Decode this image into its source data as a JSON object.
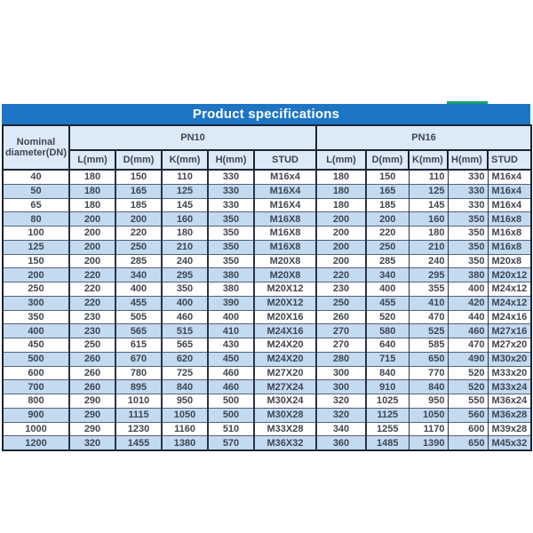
{
  "title_bar": {
    "label": "Product specifications",
    "bg_color": "#1e75c5",
    "accent_color": "#18a06e"
  },
  "table": {
    "nominal_header_line1": "Nominal",
    "nominal_header_line2": "diameter(DN)",
    "groups": [
      {
        "label": "PN10"
      },
      {
        "label": "PN16"
      }
    ],
    "sub_headers": [
      "L(mm)",
      "D(mm)",
      "K(mm)",
      "H(mm)",
      "STUD"
    ],
    "rows": [
      {
        "dn": "40",
        "pn10": [
          "180",
          "150",
          "110",
          "330",
          "M16x4"
        ],
        "pn16": [
          "180",
          "150",
          "110",
          "330",
          "M16x4"
        ]
      },
      {
        "dn": "50",
        "pn10": [
          "180",
          "165",
          "125",
          "330",
          "M16X4"
        ],
        "pn16": [
          "180",
          "165",
          "125",
          "330",
          "M16x4"
        ]
      },
      {
        "dn": "65",
        "pn10": [
          "180",
          "185",
          "145",
          "330",
          "M16X4"
        ],
        "pn16": [
          "180",
          "185",
          "145",
          "330",
          "M16x4"
        ]
      },
      {
        "dn": "80",
        "pn10": [
          "200",
          "200",
          "160",
          "350",
          "M16X8"
        ],
        "pn16": [
          "200",
          "200",
          "160",
          "350",
          "M16x8"
        ]
      },
      {
        "dn": "100",
        "pn10": [
          "200",
          "220",
          "180",
          "350",
          "M16X8"
        ],
        "pn16": [
          "200",
          "220",
          "180",
          "350",
          "M16x8"
        ]
      },
      {
        "dn": "125",
        "pn10": [
          "200",
          "250",
          "210",
          "350",
          "M16X8"
        ],
        "pn16": [
          "200",
          "250",
          "210",
          "350",
          "M16x8"
        ]
      },
      {
        "dn": "150",
        "pn10": [
          "200",
          "285",
          "240",
          "350",
          "M20X8"
        ],
        "pn16": [
          "200",
          "285",
          "240",
          "350",
          "M20x8"
        ]
      },
      {
        "dn": "200",
        "pn10": [
          "220",
          "340",
          "295",
          "380",
          "M20X8"
        ],
        "pn16": [
          "220",
          "340",
          "295",
          "380",
          "M20x12"
        ]
      },
      {
        "dn": "250",
        "pn10": [
          "220",
          "400",
          "350",
          "380",
          "M20X12"
        ],
        "pn16": [
          "230",
          "400",
          "355",
          "400",
          "M24x12"
        ]
      },
      {
        "dn": "300",
        "pn10": [
          "220",
          "455",
          "400",
          "390",
          "M20X12"
        ],
        "pn16": [
          "250",
          "455",
          "410",
          "420",
          "M24x12"
        ]
      },
      {
        "dn": "350",
        "pn10": [
          "230",
          "505",
          "460",
          "400",
          "M20X16"
        ],
        "pn16": [
          "260",
          "520",
          "470",
          "440",
          "M24x16"
        ]
      },
      {
        "dn": "400",
        "pn10": [
          "230",
          "565",
          "515",
          "410",
          "M24X16"
        ],
        "pn16": [
          "270",
          "580",
          "525",
          "460",
          "M27x16"
        ]
      },
      {
        "dn": "450",
        "pn10": [
          "250",
          "615",
          "565",
          "430",
          "M24X20"
        ],
        "pn16": [
          "270",
          "640",
          "585",
          "470",
          "M27x20"
        ]
      },
      {
        "dn": "500",
        "pn10": [
          "260",
          "670",
          "620",
          "450",
          "M24X20"
        ],
        "pn16": [
          "280",
          "715",
          "650",
          "490",
          "M30x20"
        ]
      },
      {
        "dn": "600",
        "pn10": [
          "260",
          "780",
          "725",
          "460",
          "M27X20"
        ],
        "pn16": [
          "300",
          "840",
          "770",
          "520",
          "M33x20"
        ]
      },
      {
        "dn": "700",
        "pn10": [
          "260",
          "895",
          "840",
          "460",
          "M27X24"
        ],
        "pn16": [
          "300",
          "910",
          "840",
          "520",
          "M33x24"
        ]
      },
      {
        "dn": "800",
        "pn10": [
          "290",
          "1010",
          "950",
          "500",
          "M30X24"
        ],
        "pn16": [
          "320",
          "1025",
          "950",
          "550",
          "M36x24"
        ]
      },
      {
        "dn": "900",
        "pn10": [
          "290",
          "1115",
          "1050",
          "500",
          "M30X28"
        ],
        "pn16": [
          "320",
          "1125",
          "1050",
          "560",
          "M36x28"
        ]
      },
      {
        "dn": "1000",
        "pn10": [
          "290",
          "1230",
          "1160",
          "510",
          "M33X28"
        ],
        "pn16": [
          "340",
          "1255",
          "1170",
          "600",
          "M39x28"
        ]
      },
      {
        "dn": "1200",
        "pn10": [
          "320",
          "1455",
          "1380",
          "570",
          "M36X32"
        ],
        "pn16": [
          "360",
          "1485",
          "1390",
          "650",
          "M45x32"
        ]
      }
    ]
  }
}
